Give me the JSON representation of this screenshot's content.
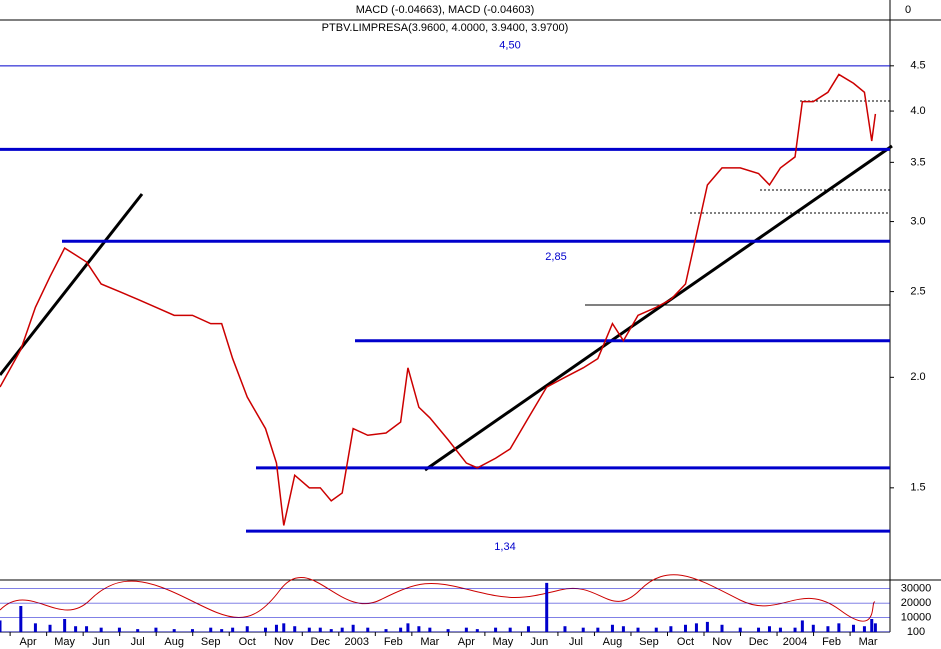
{
  "chart_data": {
    "type": "line",
    "title": "PTBV.LIMPRESA(3.9600, 4.0000, 3.9400, 3.9700)",
    "macd_title": "MACD (-0.04663), MACD (-0.04603)",
    "macd_yticks": [
      0
    ],
    "log": true,
    "xlim": [
      0.23,
      24.6
    ],
    "xticks": [
      {
        "value": 1,
        "label": "Apr"
      },
      {
        "value": 2,
        "label": "May"
      },
      {
        "value": 3,
        "label": "Jun"
      },
      {
        "value": 4,
        "label": "Jul"
      },
      {
        "value": 5,
        "label": "Aug"
      },
      {
        "value": 6,
        "label": "Sep"
      },
      {
        "value": 7,
        "label": "Oct"
      },
      {
        "value": 8,
        "label": "Nov"
      },
      {
        "value": 9,
        "label": "Dec"
      },
      {
        "value": 10,
        "label": "2003"
      },
      {
        "value": 11,
        "label": "Feb"
      },
      {
        "value": 12,
        "label": "Mar"
      },
      {
        "value": 13,
        "label": "Apr"
      },
      {
        "value": 14,
        "label": "May"
      },
      {
        "value": 15,
        "label": "Jun"
      },
      {
        "value": 16,
        "label": "Jul"
      },
      {
        "value": 17,
        "label": "Aug"
      },
      {
        "value": 18,
        "label": "Sep"
      },
      {
        "value": 19,
        "label": "Oct"
      },
      {
        "value": 20,
        "label": "Nov"
      },
      {
        "value": 21,
        "label": "Dec"
      },
      {
        "value": 22,
        "label": "2004"
      },
      {
        "value": 23,
        "label": "Feb"
      },
      {
        "value": 24,
        "label": "Mar"
      }
    ],
    "ylim": [
      1.18,
      5.07
    ],
    "yticks": [
      4.5,
      {
        "value": 4.0,
        "label": "4.0"
      },
      3.5,
      {
        "value": 3.0,
        "label": "3.0"
      },
      2.5,
      {
        "value": 2.0,
        "label": "2.0"
      },
      1.5
    ],
    "x": [
      0.23,
      0.8,
      1.2,
      1.6,
      2.0,
      2.3,
      2.6,
      3.0,
      3.5,
      4.0,
      4.5,
      5.0,
      5.5,
      6.0,
      6.3,
      6.6,
      7.0,
      7.5,
      7.8,
      8.0,
      8.3,
      8.7,
      9.0,
      9.3,
      9.6,
      9.9,
      10.3,
      10.8,
      11.2,
      11.4,
      11.7,
      12.0,
      12.5,
      13.0,
      13.3,
      13.8,
      14.2,
      14.7,
      15.2,
      15.7,
      16.2,
      16.6,
      17.0,
      17.3,
      17.7,
      18.2,
      18.6,
      19.0,
      19.3,
      19.6,
      20.0,
      20.5,
      21.0,
      21.3,
      21.6,
      22.0,
      22.2,
      22.5,
      22.9,
      23.2,
      23.6,
      23.9,
      24.1,
      24.2
    ],
    "series": [
      {
        "name": "PTBV.LIMPRESA",
        "color": "#cc0000",
        "values": [
          1.95,
          2.15,
          2.4,
          2.6,
          2.8,
          2.75,
          2.7,
          2.55,
          2.5,
          2.45,
          2.4,
          2.35,
          2.35,
          2.3,
          2.3,
          2.1,
          1.9,
          1.75,
          1.6,
          1.36,
          1.55,
          1.5,
          1.5,
          1.45,
          1.48,
          1.75,
          1.72,
          1.73,
          1.78,
          2.05,
          1.85,
          1.8,
          1.7,
          1.6,
          1.58,
          1.62,
          1.66,
          1.8,
          1.95,
          2.0,
          2.05,
          2.1,
          2.3,
          2.2,
          2.35,
          2.4,
          2.45,
          2.55,
          2.9,
          3.3,
          3.45,
          3.45,
          3.4,
          3.3,
          3.45,
          3.55,
          4.1,
          4.1,
          4.2,
          4.4,
          4.3,
          4.2,
          3.7,
          3.97
        ]
      }
    ],
    "levels": [
      {
        "value": 4.5,
        "label": "4,50"
      },
      {
        "value": 3.62
      },
      {
        "value": 2.85,
        "label": "2,85"
      },
      {
        "value": 2.2
      },
      {
        "value": 1.58
      },
      {
        "value": 1.34,
        "label": "1,34"
      }
    ],
    "volume": {
      "color": "#0000cc",
      "ylim": [
        0,
        36000
      ],
      "yticks": [
        30000,
        20000,
        10000,
        100
      ],
      "values": [
        8000,
        18000,
        6000,
        5000,
        9000,
        4000,
        4000,
        3000,
        3000,
        2000,
        3000,
        2000,
        2000,
        3000,
        2000,
        3000,
        4000,
        3000,
        5000,
        6000,
        4000,
        3000,
        3000,
        2000,
        3000,
        5000,
        3000,
        2000,
        3000,
        6000,
        4000,
        3000,
        2000,
        3000,
        2000,
        3000,
        3000,
        4000,
        34000,
        4000,
        3000,
        3000,
        5000,
        4000,
        3000,
        3000,
        4000,
        5000,
        6000,
        7000,
        5000,
        3000,
        3000,
        4000,
        3000,
        3000,
        8000,
        5000,
        4000,
        6000,
        5000,
        4000,
        9000,
        6000
      ]
    }
  }
}
